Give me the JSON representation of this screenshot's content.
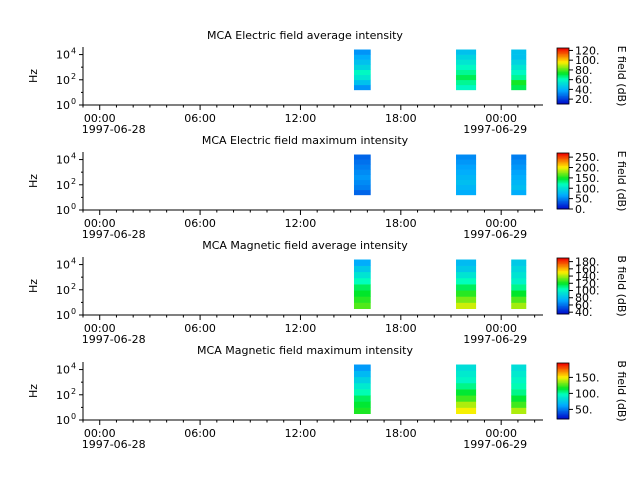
{
  "chart_data": [
    {
      "type": "heatmap",
      "title": "MCA  Electric field average intensity",
      "ylabel": "Hz",
      "colorbar": {
        "label": "E field (dB)",
        "ticks": [
          "20.",
          "40.",
          "60.",
          "80.",
          "100.",
          "120."
        ],
        "range": [
          10,
          125
        ]
      },
      "y_ticks": [
        {
          "base": "10",
          "exp": "0"
        },
        {
          "base": "10",
          "exp": "2"
        },
        {
          "base": "10",
          "exp": "4"
        }
      ],
      "x_ticks": [
        {
          "time": "00:00",
          "date": "1997-06-28"
        },
        {
          "time": "06:00",
          "date": ""
        },
        {
          "time": "12:00",
          "date": ""
        },
        {
          "time": "18:00",
          "date": ""
        },
        {
          "time": "00:00",
          "date": "1997-06-29"
        }
      ],
      "x_range_hours": [
        -1,
        26.5
      ],
      "y_range_log10": [
        0,
        4.6
      ],
      "segments": [
        {
          "start_hour": 15.2,
          "end_hour": 16.2,
          "freq_log10": [
            1.2,
            4.4
          ],
          "intensity_db": [
            35,
            45,
            55,
            60,
            50,
            45,
            40,
            35
          ]
        },
        {
          "start_hour": 21.3,
          "end_hour": 22.5,
          "freq_log10": [
            1.2,
            4.4
          ],
          "intensity_db": [
            60,
            65,
            70,
            65,
            60,
            55,
            50,
            45
          ]
        },
        {
          "start_hour": 24.6,
          "end_hour": 25.5,
          "freq_log10": [
            1.2,
            4.4
          ],
          "intensity_db": [
            70,
            75,
            65,
            60,
            55,
            50,
            45,
            45
          ]
        }
      ]
    },
    {
      "type": "heatmap",
      "title": "MCA  Electric field maximum intensity",
      "ylabel": "Hz",
      "colorbar": {
        "label": "E field (dB)",
        "ticks": [
          "0.",
          "50.",
          "100.",
          "150.",
          "200.",
          "250."
        ],
        "range": [
          0,
          270
        ]
      },
      "y_ticks": [
        {
          "base": "10",
          "exp": "0"
        },
        {
          "base": "10",
          "exp": "2"
        },
        {
          "base": "10",
          "exp": "4"
        }
      ],
      "x_ticks": [
        {
          "time": "00:00",
          "date": "1997-06-28"
        },
        {
          "time": "06:00",
          "date": ""
        },
        {
          "time": "12:00",
          "date": ""
        },
        {
          "time": "18:00",
          "date": ""
        },
        {
          "time": "00:00",
          "date": "1997-06-29"
        }
      ],
      "x_range_hours": [
        -1,
        26.5
      ],
      "y_range_log10": [
        0,
        4.6
      ],
      "segments": [
        {
          "start_hour": 15.2,
          "end_hour": 16.2,
          "freq_log10": [
            1.2,
            4.4
          ],
          "intensity_db": [
            40,
            50,
            55,
            60,
            55,
            50,
            45,
            40
          ]
        },
        {
          "start_hour": 21.3,
          "end_hour": 22.5,
          "freq_log10": [
            1.2,
            4.4
          ],
          "intensity_db": [
            70,
            75,
            80,
            75,
            70,
            65,
            60,
            55
          ]
        },
        {
          "start_hour": 24.6,
          "end_hour": 25.5,
          "freq_log10": [
            1.2,
            4.4
          ],
          "intensity_db": [
            70,
            80,
            75,
            70,
            65,
            60,
            55,
            50
          ]
        }
      ]
    },
    {
      "type": "heatmap",
      "title": "MCA  Magnetic field average intensity",
      "ylabel": "Hz",
      "colorbar": {
        "label": "B field (dB)",
        "ticks": [
          "40.",
          "60.",
          "80.",
          "100.",
          "120.",
          "140.",
          "160.",
          "180."
        ],
        "range": [
          35,
          190
        ]
      },
      "y_ticks": [
        {
          "base": "10",
          "exp": "0"
        },
        {
          "base": "10",
          "exp": "2"
        },
        {
          "base": "10",
          "exp": "4"
        }
      ],
      "x_ticks": [
        {
          "time": "00:00",
          "date": "1997-06-28"
        },
        {
          "time": "06:00",
          "date": ""
        },
        {
          "time": "12:00",
          "date": ""
        },
        {
          "time": "18:00",
          "date": ""
        },
        {
          "time": "00:00",
          "date": "1997-06-29"
        }
      ],
      "x_range_hours": [
        -1,
        26.5
      ],
      "y_range_log10": [
        0,
        4.6
      ],
      "segments": [
        {
          "start_hour": 15.2,
          "end_hour": 16.2,
          "freq_log10": [
            0.5,
            4.4
          ],
          "intensity_db": [
            130,
            125,
            120,
            115,
            105,
            95,
            85,
            75
          ]
        },
        {
          "start_hour": 21.3,
          "end_hour": 22.5,
          "freq_log10": [
            0.5,
            4.4
          ],
          "intensity_db": [
            145,
            135,
            125,
            115,
            105,
            95,
            85,
            80
          ]
        },
        {
          "start_hour": 24.6,
          "end_hour": 25.5,
          "freq_log10": [
            0.5,
            4.4
          ],
          "intensity_db": [
            140,
            130,
            120,
            110,
            100,
            95,
            90,
            85
          ]
        }
      ]
    },
    {
      "type": "heatmap",
      "title": "MCA  Magnetic field maximum intensity",
      "ylabel": "Hz",
      "colorbar": {
        "label": "B field (dB)",
        "ticks": [
          "50.",
          "100.",
          "150."
        ],
        "range": [
          20,
          195
        ]
      },
      "y_ticks": [
        {
          "base": "10",
          "exp": "0"
        },
        {
          "base": "10",
          "exp": "2"
        },
        {
          "base": "10",
          "exp": "4"
        }
      ],
      "x_ticks": [
        {
          "time": "00:00",
          "date": "1997-06-28"
        },
        {
          "time": "06:00",
          "date": ""
        },
        {
          "time": "12:00",
          "date": ""
        },
        {
          "time": "18:00",
          "date": ""
        },
        {
          "time": "00:00",
          "date": "1997-06-29"
        }
      ],
      "x_range_hours": [
        -1,
        26.5
      ],
      "y_range_log10": [
        0,
        4.6
      ],
      "segments": [
        {
          "start_hour": 15.2,
          "end_hour": 16.2,
          "freq_log10": [
            0.5,
            4.4
          ],
          "intensity_db": [
            120,
            115,
            110,
            100,
            90,
            80,
            70,
            60
          ]
        },
        {
          "start_hour": 21.3,
          "end_hour": 22.5,
          "freq_log10": [
            0.5,
            4.4
          ],
          "intensity_db": [
            150,
            140,
            125,
            115,
            105,
            95,
            90,
            85
          ]
        },
        {
          "start_hour": 24.6,
          "end_hour": 25.5,
          "freq_log10": [
            0.5,
            4.4
          ],
          "intensity_db": [
            140,
            125,
            115,
            105,
            100,
            95,
            90,
            85
          ]
        }
      ]
    }
  ]
}
